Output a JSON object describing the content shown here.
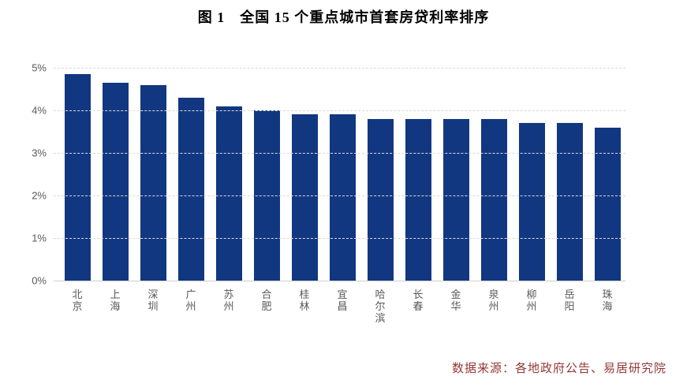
{
  "title": "图 1　全国 15 个重点城市首套房贷利率排序",
  "source": "数据来源：各地政府公告、易居研究院",
  "colors": {
    "bar": "#123781",
    "gridline": "#d9d9d9",
    "axis_line": "#cfcfcf",
    "axis_text": "#595959",
    "title_text": "#000000",
    "source_text": "#953735"
  },
  "chart_data": {
    "type": "bar",
    "title": "图 1　全国 15 个重点城市首套房贷利率排序",
    "categories": [
      "北京",
      "上海",
      "深圳",
      "广州",
      "苏州",
      "合肥",
      "桂林",
      "宜昌",
      "哈尔滨",
      "长春",
      "金华",
      "泉州",
      "柳州",
      "岳阳",
      "珠海"
    ],
    "values": [
      4.85,
      4.65,
      4.6,
      4.3,
      4.1,
      4.0,
      3.9,
      3.9,
      3.8,
      3.8,
      3.8,
      3.8,
      3.7,
      3.7,
      3.6
    ],
    "unit": "%",
    "xlabel": "",
    "ylabel": "",
    "ylim": [
      0,
      5
    ],
    "yticks": [
      "0%",
      "1%",
      "2%",
      "3%",
      "4%",
      "5%"
    ],
    "grid": "horizontal-dashed",
    "legend": "none",
    "bar_orientation": "vertical",
    "x_tick_label_orientation": "vertical-stacked",
    "source_note": "数据来源：各地政府公告、易居研究院"
  }
}
